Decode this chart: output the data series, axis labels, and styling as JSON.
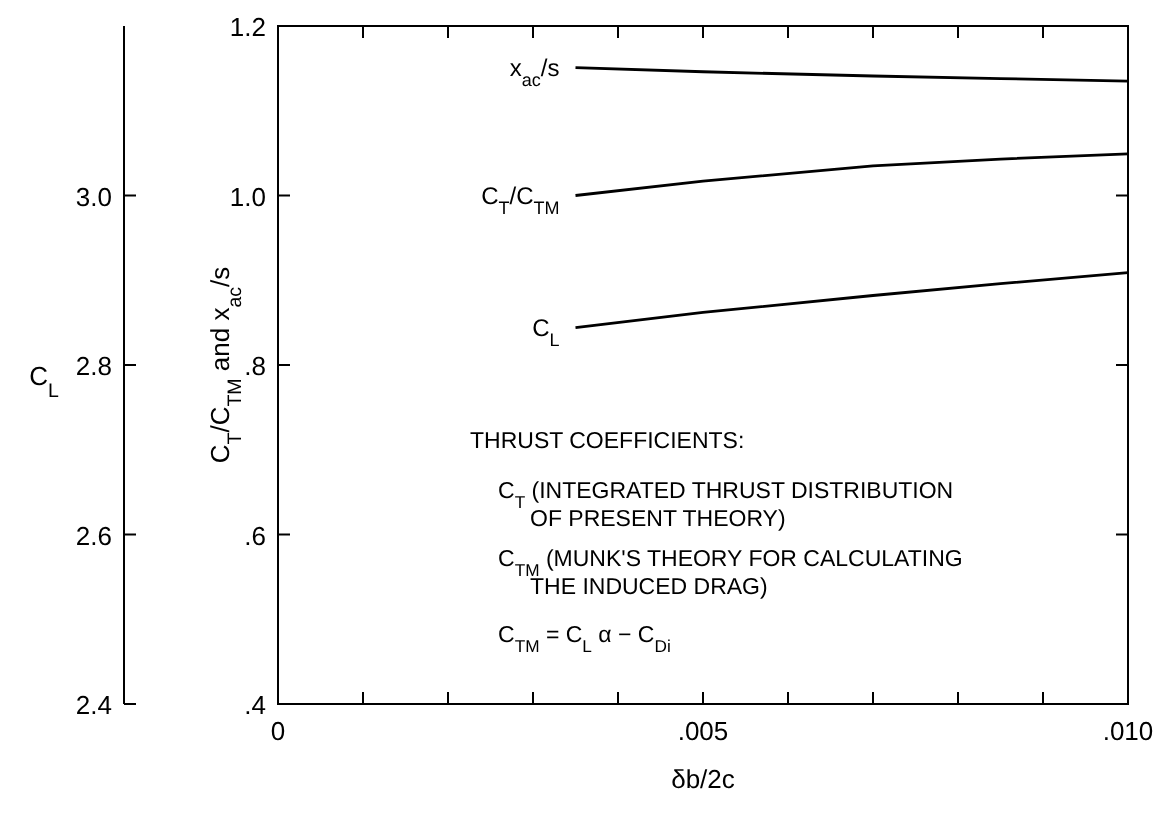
{
  "chart_data": {
    "type": "line",
    "xlabel": "δb/2c",
    "ylabel": "C$_{T}$/C$_{TM}$ and x$_{ac}$/s",
    "y2label": "C$_{L}$",
    "xlim": [
      0,
      0.01
    ],
    "xticks": [
      0,
      {
        "value": 0.001,
        "label": null
      },
      {
        "value": 0.002,
        "label": null
      },
      {
        "value": 0.003,
        "label": null
      },
      {
        "value": 0.004,
        "label": null
      },
      {
        "value": 0.005,
        "label": ".005"
      },
      {
        "value": 0.006,
        "label": null
      },
      {
        "value": 0.007,
        "label": null
      },
      {
        "value": 0.008,
        "label": null
      },
      {
        "value": 0.009,
        "label": null
      },
      {
        "value": 0.01,
        "label": ".010"
      }
    ],
    "ylim": [
      0.4,
      1.2
    ],
    "yticks": [
      {
        "value": 0.4,
        "label": ".4"
      },
      {
        "value": 0.6,
        "label": ".6"
      },
      {
        "value": 0.8,
        "label": ".8"
      },
      {
        "value": 1.0,
        "label": "1.0"
      },
      {
        "value": 1.2,
        "label": "1.2"
      }
    ],
    "y2lim": [
      2.4,
      3.2
    ],
    "y2ticks": [
      2.4,
      2.6,
      2.8,
      {
        "value": 3.0,
        "label": "3.0"
      }
    ],
    "x": [
      0.0035,
      0.005,
      0.007,
      0.0085,
      0.01
    ],
    "series": [
      {
        "name": "x$_{ac}$/s",
        "color": "#000000",
        "values": [
          1.151,
          1.146,
          1.141,
          1.138,
          1.135
        ]
      },
      {
        "name": "C$_{T}$/C$_{TM}$",
        "color": "#000000",
        "values": [
          1.0,
          1.017,
          1.035,
          1.043,
          1.049
        ]
      },
      {
        "name": "C$_{L}$",
        "color": "#000000",
        "axis": "y2",
        "values": [
          2.844,
          2.862,
          2.882,
          2.896,
          2.909
        ]
      }
    ],
    "annotations": [
      "THRUST COEFFICIENTS:",
      "C$_{T}$ (INTEGRATED THRUST DISTRIBUTION",
      "OF PRESENT THEORY)",
      "C$_{TM}$ (MUNK'S THEORY FOR CALCULATING",
      "THE INDUCED DRAG)",
      "C$_{TM}$ = C$_{L}$ α − C$_{Di}$"
    ],
    "grid": false,
    "marker": "none",
    "line_style": "solid"
  }
}
